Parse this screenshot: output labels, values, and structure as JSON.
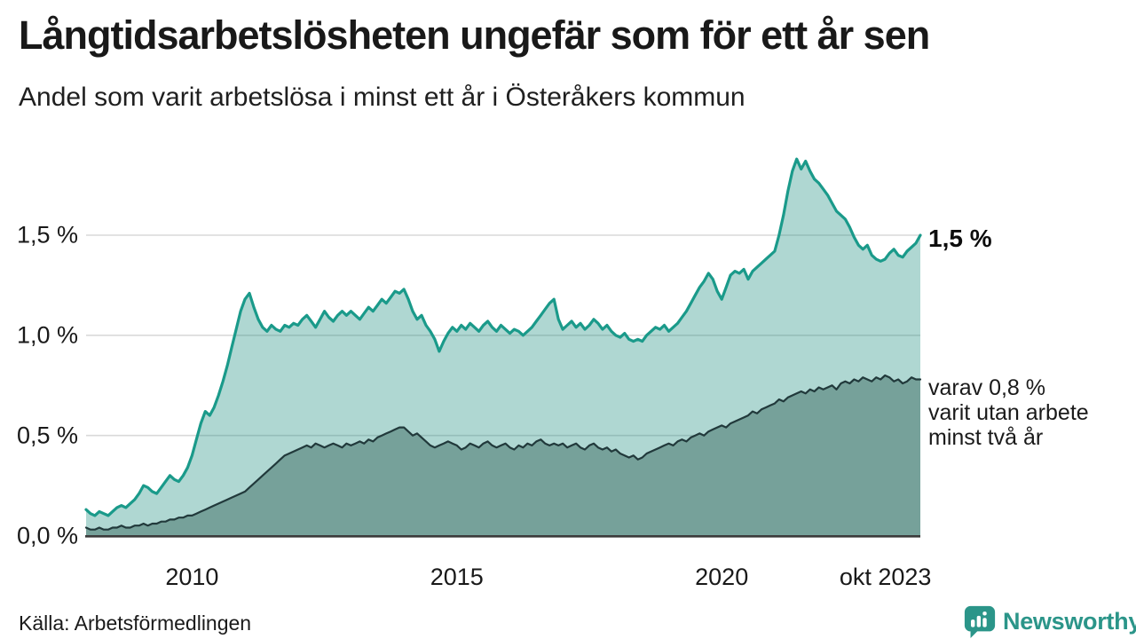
{
  "header": {
    "title": "Långtidsarbetslösheten ungefär som för ett år sen",
    "subtitle": "Andel som varit arbetslösa i minst ett år i Österåkers kommun"
  },
  "annotations": {
    "latest_value": "1,5 %",
    "series2_note": "varav 0,8 %\nvarit utan arbete\nminst två år"
  },
  "footer": {
    "source": "Källa: Arbetsförmedlingen",
    "brand": "Newsworthy"
  },
  "icons": {
    "brand_logo": "newsworthy-speech-bubble-bar-chart-icon"
  },
  "colors": {
    "line1": "#1a9a8a",
    "fill1": "rgba(26,140,125,0.35)",
    "line2": "#21393b",
    "fill2": "#76a19a",
    "grid": "#d9d9d9",
    "baseline": "#3b3b3b",
    "brand_teal": "#2b9589"
  },
  "chart_data": {
    "type": "area",
    "title": "Långtidsarbetslösheten ungefär som för ett år sen",
    "subtitle": "Andel som varit arbetslösa i minst ett år i Österåkers kommun",
    "unit": "%",
    "x_start": "jan 2008",
    "x_end": "okt 2023",
    "points_per_year": 12,
    "ylim": [
      0,
      1.9
    ],
    "grid": "horizontal",
    "legend_position": "right-annotations",
    "x_ticks": [
      {
        "label": "2010",
        "t": 2010.0
      },
      {
        "label": "2015",
        "t": 2015.0
      },
      {
        "label": "2020",
        "t": 2020.0
      },
      {
        "label": "okt 2023",
        "t": 2023.75,
        "align": "right"
      }
    ],
    "y_ticks": [
      {
        "label": "0,0 %",
        "v": 0.0
      },
      {
        "label": "0,5 %",
        "v": 0.5
      },
      {
        "label": "1,0 %",
        "v": 1.0
      },
      {
        "label": "1,5 %",
        "v": 1.5
      }
    ],
    "series": [
      {
        "name": "Andel arbetslösa minst ett år",
        "latest_label": "1,5 %",
        "latest_value": 1.5,
        "values": [
          0.13,
          0.11,
          0.1,
          0.12,
          0.11,
          0.1,
          0.12,
          0.14,
          0.15,
          0.14,
          0.16,
          0.18,
          0.21,
          0.25,
          0.24,
          0.22,
          0.21,
          0.24,
          0.27,
          0.3,
          0.28,
          0.27,
          0.3,
          0.34,
          0.4,
          0.48,
          0.56,
          0.62,
          0.6,
          0.64,
          0.7,
          0.77,
          0.85,
          0.94,
          1.03,
          1.12,
          1.18,
          1.21,
          1.14,
          1.08,
          1.04,
          1.02,
          1.05,
          1.03,
          1.02,
          1.05,
          1.04,
          1.06,
          1.05,
          1.08,
          1.1,
          1.07,
          1.04,
          1.08,
          1.12,
          1.09,
          1.07,
          1.1,
          1.12,
          1.1,
          1.12,
          1.1,
          1.08,
          1.11,
          1.14,
          1.12,
          1.15,
          1.18,
          1.16,
          1.19,
          1.22,
          1.21,
          1.23,
          1.18,
          1.12,
          1.08,
          1.1,
          1.05,
          1.02,
          0.98,
          0.92,
          0.97,
          1.01,
          1.04,
          1.02,
          1.05,
          1.03,
          1.06,
          1.04,
          1.02,
          1.05,
          1.07,
          1.04,
          1.02,
          1.05,
          1.03,
          1.01,
          1.03,
          1.02,
          1.0,
          1.02,
          1.04,
          1.07,
          1.1,
          1.13,
          1.16,
          1.18,
          1.08,
          1.03,
          1.05,
          1.07,
          1.04,
          1.06,
          1.03,
          1.05,
          1.08,
          1.06,
          1.03,
          1.05,
          1.02,
          1.0,
          0.99,
          1.01,
          0.98,
          0.97,
          0.98,
          0.97,
          1.0,
          1.02,
          1.04,
          1.03,
          1.05,
          1.02,
          1.04,
          1.06,
          1.09,
          1.12,
          1.16,
          1.2,
          1.24,
          1.27,
          1.31,
          1.28,
          1.22,
          1.18,
          1.24,
          1.3,
          1.32,
          1.31,
          1.33,
          1.28,
          1.32,
          1.34,
          1.36,
          1.38,
          1.4,
          1.42,
          1.5,
          1.6,
          1.72,
          1.82,
          1.88,
          1.83,
          1.87,
          1.82,
          1.78,
          1.76,
          1.73,
          1.7,
          1.66,
          1.62,
          1.6,
          1.58,
          1.54,
          1.49,
          1.45,
          1.43,
          1.45,
          1.4,
          1.38,
          1.37,
          1.38,
          1.41,
          1.43,
          1.4,
          1.39,
          1.42,
          1.44,
          1.46,
          1.5
        ]
      },
      {
        "name": "varav utan arbete minst två år",
        "latest_label": "varav 0,8 %",
        "latest_value": 0.8,
        "values": [
          0.04,
          0.03,
          0.03,
          0.04,
          0.03,
          0.03,
          0.04,
          0.04,
          0.05,
          0.04,
          0.04,
          0.05,
          0.05,
          0.06,
          0.05,
          0.06,
          0.06,
          0.07,
          0.07,
          0.08,
          0.08,
          0.09,
          0.09,
          0.1,
          0.1,
          0.11,
          0.12,
          0.13,
          0.14,
          0.15,
          0.16,
          0.17,
          0.18,
          0.19,
          0.2,
          0.21,
          0.22,
          0.24,
          0.26,
          0.28,
          0.3,
          0.32,
          0.34,
          0.36,
          0.38,
          0.4,
          0.41,
          0.42,
          0.43,
          0.44,
          0.45,
          0.44,
          0.46,
          0.45,
          0.44,
          0.45,
          0.46,
          0.45,
          0.44,
          0.46,
          0.45,
          0.46,
          0.47,
          0.46,
          0.48,
          0.47,
          0.49,
          0.5,
          0.51,
          0.52,
          0.53,
          0.54,
          0.54,
          0.52,
          0.5,
          0.51,
          0.49,
          0.47,
          0.45,
          0.44,
          0.45,
          0.46,
          0.47,
          0.46,
          0.45,
          0.43,
          0.44,
          0.46,
          0.45,
          0.44,
          0.46,
          0.47,
          0.45,
          0.44,
          0.45,
          0.46,
          0.44,
          0.43,
          0.45,
          0.44,
          0.46,
          0.45,
          0.47,
          0.48,
          0.46,
          0.45,
          0.46,
          0.45,
          0.46,
          0.44,
          0.45,
          0.46,
          0.44,
          0.43,
          0.45,
          0.46,
          0.44,
          0.43,
          0.44,
          0.42,
          0.43,
          0.41,
          0.4,
          0.39,
          0.4,
          0.38,
          0.39,
          0.41,
          0.42,
          0.43,
          0.44,
          0.45,
          0.46,
          0.45,
          0.47,
          0.48,
          0.47,
          0.49,
          0.5,
          0.51,
          0.5,
          0.52,
          0.53,
          0.54,
          0.55,
          0.54,
          0.56,
          0.57,
          0.58,
          0.59,
          0.6,
          0.62,
          0.61,
          0.63,
          0.64,
          0.65,
          0.66,
          0.68,
          0.67,
          0.69,
          0.7,
          0.71,
          0.72,
          0.71,
          0.73,
          0.72,
          0.74,
          0.73,
          0.74,
          0.75,
          0.73,
          0.76,
          0.77,
          0.76,
          0.78,
          0.77,
          0.79,
          0.78,
          0.77,
          0.79,
          0.78,
          0.8,
          0.79,
          0.77,
          0.78,
          0.76,
          0.77,
          0.79,
          0.78,
          0.78
        ]
      }
    ]
  }
}
